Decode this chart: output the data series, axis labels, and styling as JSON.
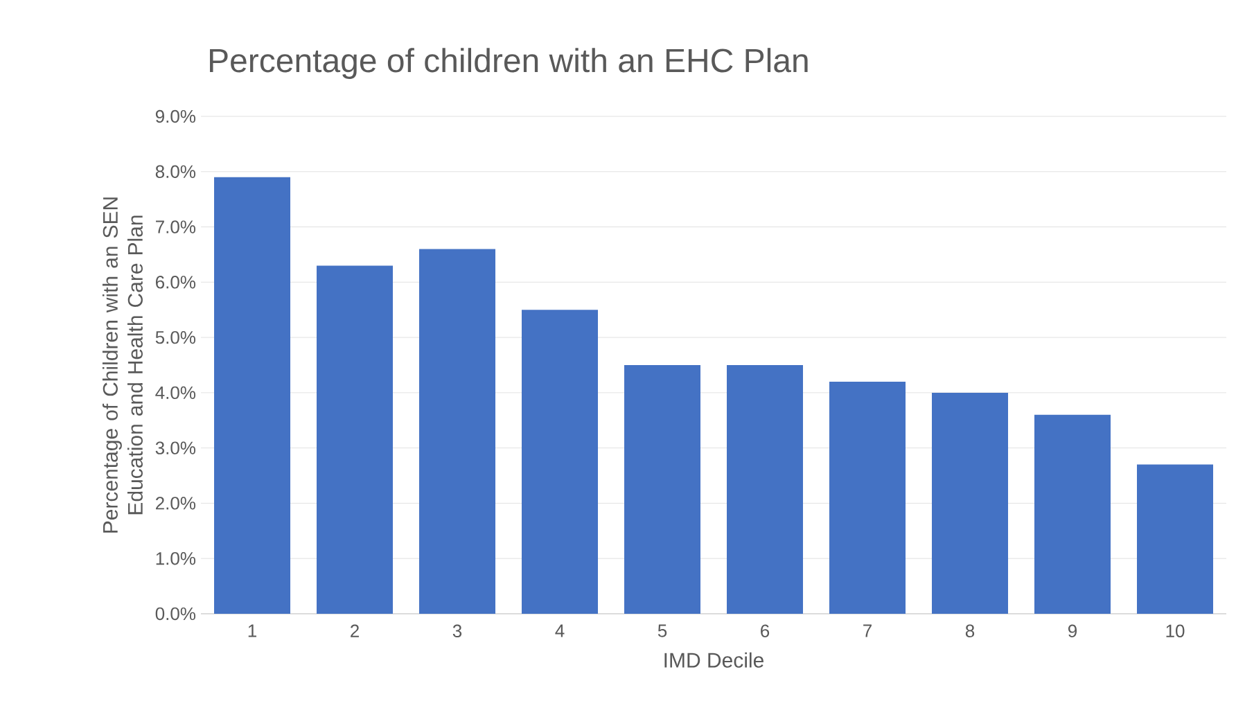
{
  "chart_data": {
    "type": "bar",
    "title": "Percentage of children with an EHC Plan",
    "xlabel": "IMD Decile",
    "ylabel": "Percentage of Children with an SEN Education and Health Care Plan",
    "categories": [
      "1",
      "2",
      "3",
      "4",
      "5",
      "6",
      "7",
      "8",
      "9",
      "10"
    ],
    "values": [
      7.9,
      6.3,
      6.6,
      5.5,
      4.5,
      4.5,
      4.2,
      4.0,
      3.6,
      2.7
    ],
    "color": "#4472c4",
    "ylim": [
      0,
      9
    ],
    "yticks": [
      {
        "value": 0,
        "label": "0.0%"
      },
      {
        "value": 1,
        "label": "1.0%"
      },
      {
        "value": 2,
        "label": "2.0%"
      },
      {
        "value": 3,
        "label": "3.0%"
      },
      {
        "value": 4,
        "label": "4.0%"
      },
      {
        "value": 5,
        "label": "5.0%"
      },
      {
        "value": 6,
        "label": "6.0%"
      },
      {
        "value": 7,
        "label": "7.0%"
      },
      {
        "value": 8,
        "label": "8.0%"
      },
      {
        "value": 9,
        "label": "9.0%"
      }
    ],
    "grid": "y"
  }
}
